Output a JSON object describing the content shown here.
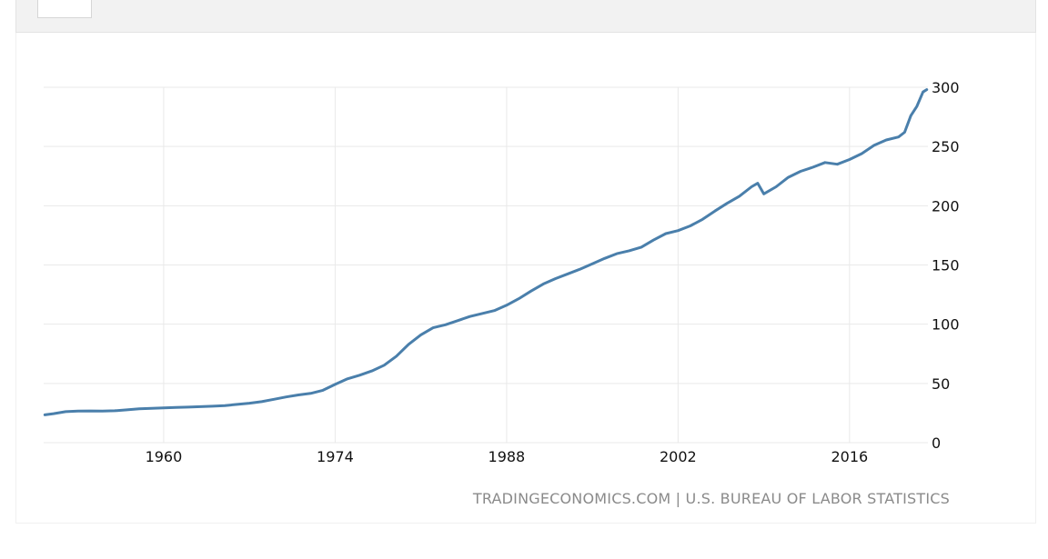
{
  "header": {
    "button_label": ""
  },
  "source": {
    "text": "TRADINGECONOMICS.COM | U.S. BUREAU OF LABOR STATISTICS"
  },
  "colors": {
    "line": "#4a7fab",
    "grid": "#e9e9e9",
    "text": "#111111",
    "source": "#8a8a8a"
  },
  "chart_data": {
    "type": "line",
    "title": "",
    "xlabel": "",
    "ylabel": "",
    "xlim": [
      1950.2,
      2022.4
    ],
    "ylim": [
      0,
      300
    ],
    "x_ticks": [
      1960,
      1974,
      1988,
      2002,
      2016
    ],
    "y_ticks": [
      0,
      50,
      100,
      150,
      200,
      250,
      300
    ],
    "y_axis_side": "right",
    "grid": true,
    "legend": "none",
    "series": [
      {
        "name": "",
        "x": [
          1950.3,
          1951,
          1952,
          1953,
          1954,
          1955,
          1956,
          1957,
          1958,
          1959,
          1960,
          1961,
          1962,
          1963,
          1964,
          1965,
          1966,
          1967,
          1968,
          1969,
          1970,
          1971,
          1972,
          1973,
          1974,
          1975,
          1976,
          1977,
          1978,
          1979,
          1980,
          1981,
          1982,
          1983,
          1984,
          1985,
          1986,
          1987,
          1988,
          1989,
          1990,
          1991,
          1992,
          1993,
          1994,
          1995,
          1996,
          1997,
          1998,
          1999,
          2000,
          2001,
          2002,
          2003,
          2004,
          2005,
          2006,
          2007,
          2008,
          2008.5,
          2009,
          2010,
          2011,
          2012,
          2013,
          2014,
          2015,
          2016,
          2017,
          2018,
          2019,
          2020,
          2020.5,
          2021,
          2021.5,
          2022,
          2022.3
        ],
        "values": [
          23.5,
          24.5,
          26.2,
          26.6,
          26.8,
          26.7,
          26.9,
          27.7,
          28.6,
          28.9,
          29.3,
          29.7,
          30.0,
          30.4,
          30.8,
          31.3,
          32.3,
          33.3,
          34.6,
          36.6,
          38.6,
          40.3,
          41.6,
          44.2,
          49.2,
          53.9,
          56.9,
          60.5,
          65.4,
          73.0,
          83.0,
          91.0,
          97.0,
          99.5,
          103.0,
          106.5,
          109.0,
          111.5,
          116.0,
          121.5,
          128.0,
          134.0,
          138.5,
          142.5,
          146.5,
          151.0,
          155.5,
          159.5,
          162.0,
          165.0,
          171.0,
          176.5,
          179.0,
          183.0,
          188.5,
          195.5,
          202.0,
          208.0,
          216.0,
          219.0,
          210.0,
          216.0,
          224.0,
          229.0,
          232.5,
          236.5,
          235.0,
          239.0,
          244.0,
          251.0,
          255.5,
          258.0,
          262.0,
          276.0,
          284.0,
          296.0,
          298.0
        ]
      }
    ]
  }
}
